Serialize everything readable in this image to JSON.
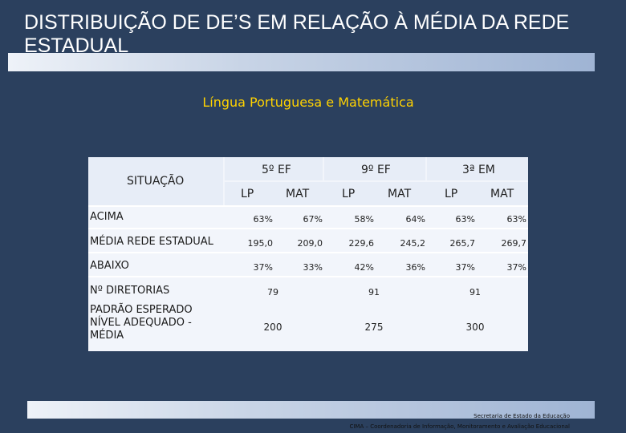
{
  "title": "DISTRIBUIÇÃO DE DE’S EM RELAÇÃO À MÉDIA DA REDE ESTADUAL",
  "subtitle": "Língua Portuguesa e Matemática",
  "table": {
    "situacao_label": "SITUAÇÃO",
    "groups": [
      "5º EF",
      "9º EF",
      "3ª EM"
    ],
    "subheaders": [
      "LP",
      "MAT",
      "LP",
      "MAT",
      "LP",
      "MAT"
    ],
    "rows": [
      {
        "label": "ACIMA",
        "values": [
          "63%",
          "67%",
          "58%",
          "64%",
          "63%",
          "63%"
        ]
      },
      {
        "label": "MÉDIA REDE ESTADUAL",
        "values": [
          "195,0",
          "209,0",
          "229,6",
          "245,2",
          "265,7",
          "269,7"
        ]
      },
      {
        "label": "ABAIXO",
        "values": [
          "37%",
          "33%",
          "42%",
          "36%",
          "37%",
          "37%"
        ]
      },
      {
        "label": "Nº DIRETORIAS",
        "values": [
          "79",
          "91",
          "91"
        ]
      },
      {
        "label": "PADRÃO ESPERADO NÍVEL ADEQUADO - MÉDIA",
        "values": [
          "200",
          "275",
          "300"
        ]
      }
    ]
  },
  "footer": {
    "line1": "Secretaria de Estado da Educação",
    "line2": "CIMA – Coordenadoria de Informação, Monitoramento e Avaliação Educacional"
  }
}
